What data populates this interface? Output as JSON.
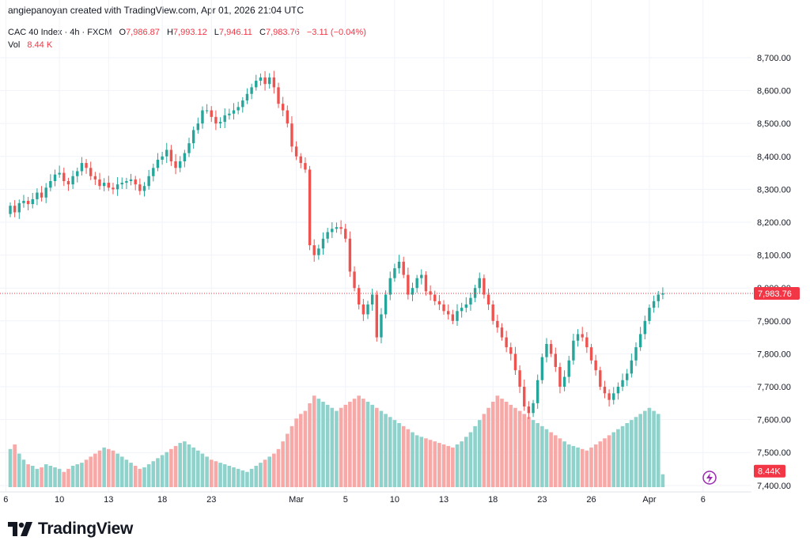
{
  "credit": "angiepanoyan created with TradingView.com, Apr 01, 2026 21:04 UTC",
  "legend": {
    "symbol": "CAC 40 Index · 4h · FXCM",
    "o_label": "O",
    "o": "7,986.87",
    "h_label": "H",
    "h": "7,993.12",
    "l_label": "L",
    "l": "7,946.11",
    "c_label": "C",
    "c": "7,983.76",
    "change": "−3.11 (−0.04%)",
    "vol_label": "Vol",
    "vol": "8.44 K"
  },
  "price_badge": "7,983.76",
  "volume_badge": "8.44K",
  "brand": "TradingView",
  "colors": {
    "up": "#26a69a",
    "down": "#ef5350",
    "up_vol": "#8fd1cb",
    "down_vol": "#f7a9a7",
    "grid": "#f0f3fa",
    "axis_text": "#131722",
    "badge": "#f23645"
  },
  "chart_data": {
    "type": "candlestick",
    "title": "CAC 40 Index · 4h · FXCM",
    "ylim": [
      7390,
      8760
    ],
    "y_ticks": [
      7400,
      7500,
      7600,
      7700,
      7800,
      7900,
      8000,
      8100,
      8200,
      8300,
      8400,
      8500,
      8600,
      8700
    ],
    "y_tick_labels": [
      "7,400.00",
      "7,500.00",
      "7,600.00",
      "7,700.00",
      "7,800.00",
      "7,900.00",
      "8,000.00",
      "8,100.00",
      "8,200.00",
      "8,300.00",
      "8,400.00",
      "8,500.00",
      "8,600.00",
      "8,700.00"
    ],
    "x_ticks": [
      {
        "i": -1,
        "label": "6"
      },
      {
        "i": 11,
        "label": "10"
      },
      {
        "i": 22,
        "label": "13"
      },
      {
        "i": 34,
        "label": "18"
      },
      {
        "i": 45,
        "label": "23"
      },
      {
        "i": 64,
        "label": "Mar"
      },
      {
        "i": 75,
        "label": "5"
      },
      {
        "i": 86,
        "label": "10"
      },
      {
        "i": 97,
        "label": "13"
      },
      {
        "i": 108,
        "label": "18"
      },
      {
        "i": 119,
        "label": "23"
      },
      {
        "i": 130,
        "label": "26"
      },
      {
        "i": 143,
        "label": "Apr"
      },
      {
        "i": 155,
        "label": "6"
      }
    ],
    "last_price": 7983.76,
    "last_volume": 8.44,
    "volume_unit": "K",
    "close": [
      8250,
      8230,
      8258,
      8265,
      8255,
      8270,
      8290,
      8275,
      8305,
      8325,
      8345,
      8350,
      8325,
      8315,
      8340,
      8355,
      8380,
      8365,
      8340,
      8330,
      8310,
      8320,
      8305,
      8300,
      8315,
      8320,
      8325,
      8330,
      8315,
      8295,
      8310,
      8340,
      8365,
      8390,
      8400,
      8420,
      8385,
      8365,
      8385,
      8410,
      8440,
      8480,
      8500,
      8540,
      8540,
      8520,
      8500,
      8505,
      8525,
      8530,
      8540,
      8550,
      8570,
      8590,
      8610,
      8630,
      8640,
      8620,
      8640,
      8610,
      8560,
      8540,
      8500,
      8430,
      8400,
      8380,
      8360,
      8130,
      8100,
      8120,
      8150,
      8170,
      8180,
      8185,
      8180,
      8150,
      8050,
      8000,
      7950,
      7920,
      7950,
      7980,
      7850,
      7920,
      7980,
      8030,
      8060,
      8080,
      8040,
      7980,
      8000,
      8030,
      8040,
      7990,
      7980,
      7960,
      7950,
      7930,
      7920,
      7900,
      7930,
      7940,
      7950,
      7970,
      8000,
      8030,
      7980,
      7950,
      7900,
      7880,
      7850,
      7820,
      7800,
      7750,
      7700,
      7640,
      7620,
      7650,
      7720,
      7790,
      7830,
      7800,
      7760,
      7700,
      7730,
      7780,
      7840,
      7860,
      7850,
      7820,
      7780,
      7750,
      7700,
      7680,
      7660,
      7680,
      7700,
      7720,
      7740,
      7780,
      7820,
      7860,
      7900,
      7940,
      7960,
      7980,
      7984
    ],
    "volume": [
      25,
      28,
      22,
      18,
      15,
      14,
      12,
      13,
      15,
      14,
      13,
      12,
      10,
      12,
      14,
      15,
      16,
      18,
      20,
      22,
      24,
      26,
      25,
      24,
      22,
      20,
      18,
      16,
      14,
      12,
      13,
      15,
      17,
      19,
      21,
      23,
      25,
      27,
      29,
      30,
      28,
      26,
      24,
      22,
      20,
      18,
      17,
      16,
      15,
      14,
      13,
      12,
      11,
      10,
      12,
      14,
      16,
      18,
      20,
      22,
      25,
      30,
      35,
      40,
      45,
      48,
      50,
      55,
      60,
      58,
      56,
      54,
      52,
      50,
      52,
      54,
      56,
      58,
      60,
      58,
      56,
      54,
      52,
      50,
      48,
      46,
      44,
      42,
      40,
      38,
      36,
      34,
      33,
      32,
      31,
      30,
      29,
      28,
      27,
      26,
      28,
      30,
      33,
      36,
      40,
      44,
      48,
      52,
      56,
      60,
      58,
      56,
      54,
      52,
      50,
      48,
      46,
      44,
      42,
      40,
      38,
      36,
      34,
      32,
      30,
      28,
      27,
      26,
      25,
      24,
      26,
      28,
      30,
      32,
      34,
      36,
      38,
      40,
      42,
      44,
      46,
      48,
      50,
      52,
      50,
      48,
      8.44
    ]
  }
}
